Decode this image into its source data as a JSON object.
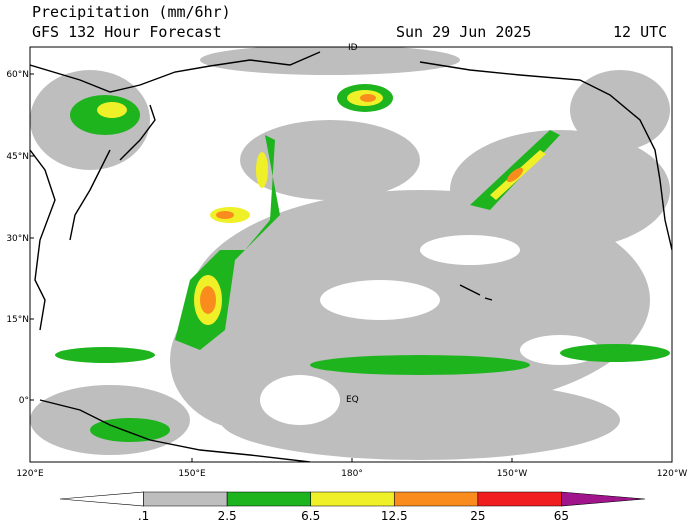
{
  "header": {
    "title": "Precipitation (mm/6hr)",
    "subtitle": "GFS 132 Hour Forecast",
    "date": "Sun 29 Jun 2025",
    "time": "12 UTC"
  },
  "map": {
    "lat_labels": [
      "60°N",
      "45°N",
      "30°N",
      "15°N",
      "0°"
    ],
    "lon_labels": [
      "120°E",
      "150°E",
      "180°",
      "150°W",
      "120°W"
    ],
    "annotations": [
      "ID",
      "EQ"
    ]
  },
  "colorbar": {
    "labels": [
      ".1",
      "2.5",
      "6.5",
      "12.5",
      "25",
      "65"
    ],
    "colors": [
      "#ffffff",
      "#bebebe",
      "#1eb41e",
      "#f0f028",
      "#fa8c1e",
      "#f01e1e",
      "#a0148c"
    ]
  }
}
